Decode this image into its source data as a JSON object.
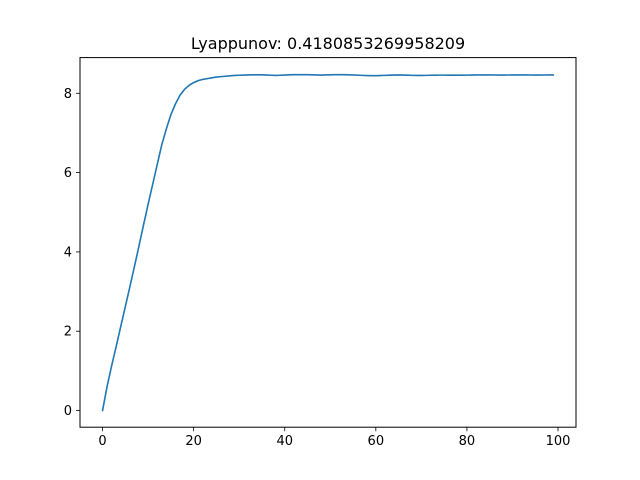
{
  "chart_data": {
    "type": "line",
    "title": "Lyappunov: 0.4180853269958209",
    "xlabel": "",
    "ylabel": "",
    "xlim": [
      -4.95,
      103.95
    ],
    "ylim": [
      -0.42,
      8.9
    ],
    "xticks": [
      0,
      20,
      40,
      60,
      80,
      100
    ],
    "yticks": [
      0,
      2,
      4,
      6,
      8
    ],
    "grid": false,
    "series_color": "#1f77b4",
    "series": [
      {
        "x": [
          0,
          1,
          2,
          3,
          4,
          5,
          6,
          7,
          8,
          9,
          10,
          11,
          12,
          13,
          14,
          15,
          16,
          17,
          18,
          19,
          20,
          21,
          22,
          23,
          24,
          25,
          26,
          27,
          28,
          29,
          30,
          31,
          32,
          33,
          34,
          35,
          36,
          37,
          38,
          39,
          40,
          41,
          42,
          43,
          44,
          45,
          46,
          47,
          48,
          49,
          50,
          51,
          52,
          53,
          54,
          55,
          56,
          57,
          58,
          59,
          60,
          61,
          62,
          63,
          64,
          65,
          66,
          67,
          68,
          69,
          70,
          71,
          72,
          73,
          74,
          75,
          76,
          77,
          78,
          79,
          80,
          81,
          82,
          83,
          84,
          85,
          86,
          87,
          88,
          89,
          90,
          91,
          92,
          93,
          94,
          95,
          96,
          97,
          98,
          99
        ],
        "y": [
          0.0,
          0.61,
          1.13,
          1.62,
          2.12,
          2.62,
          3.12,
          3.63,
          4.15,
          4.68,
          5.2,
          5.7,
          6.2,
          6.7,
          7.1,
          7.46,
          7.73,
          7.95,
          8.1,
          8.2,
          8.27,
          8.32,
          8.35,
          8.37,
          8.39,
          8.41,
          8.42,
          8.43,
          8.44,
          8.45,
          8.455,
          8.46,
          8.462,
          8.465,
          8.466,
          8.465,
          8.46,
          8.455,
          8.45,
          8.455,
          8.46,
          8.465,
          8.468,
          8.47,
          8.47,
          8.468,
          8.465,
          8.463,
          8.46,
          8.462,
          8.465,
          8.468,
          8.47,
          8.47,
          8.467,
          8.463,
          8.458,
          8.452,
          8.448,
          8.445,
          8.445,
          8.448,
          8.452,
          8.456,
          8.46,
          8.462,
          8.46,
          8.456,
          8.452,
          8.45,
          8.45,
          8.452,
          8.455,
          8.457,
          8.458,
          8.458,
          8.457,
          8.456,
          8.456,
          8.457,
          8.458,
          8.46,
          8.462,
          8.463,
          8.463,
          8.462,
          8.461,
          8.46,
          8.46,
          8.461,
          8.462,
          8.463,
          8.463,
          8.462,
          8.461,
          8.46,
          8.46,
          8.461,
          8.462,
          8.462
        ]
      }
    ]
  }
}
